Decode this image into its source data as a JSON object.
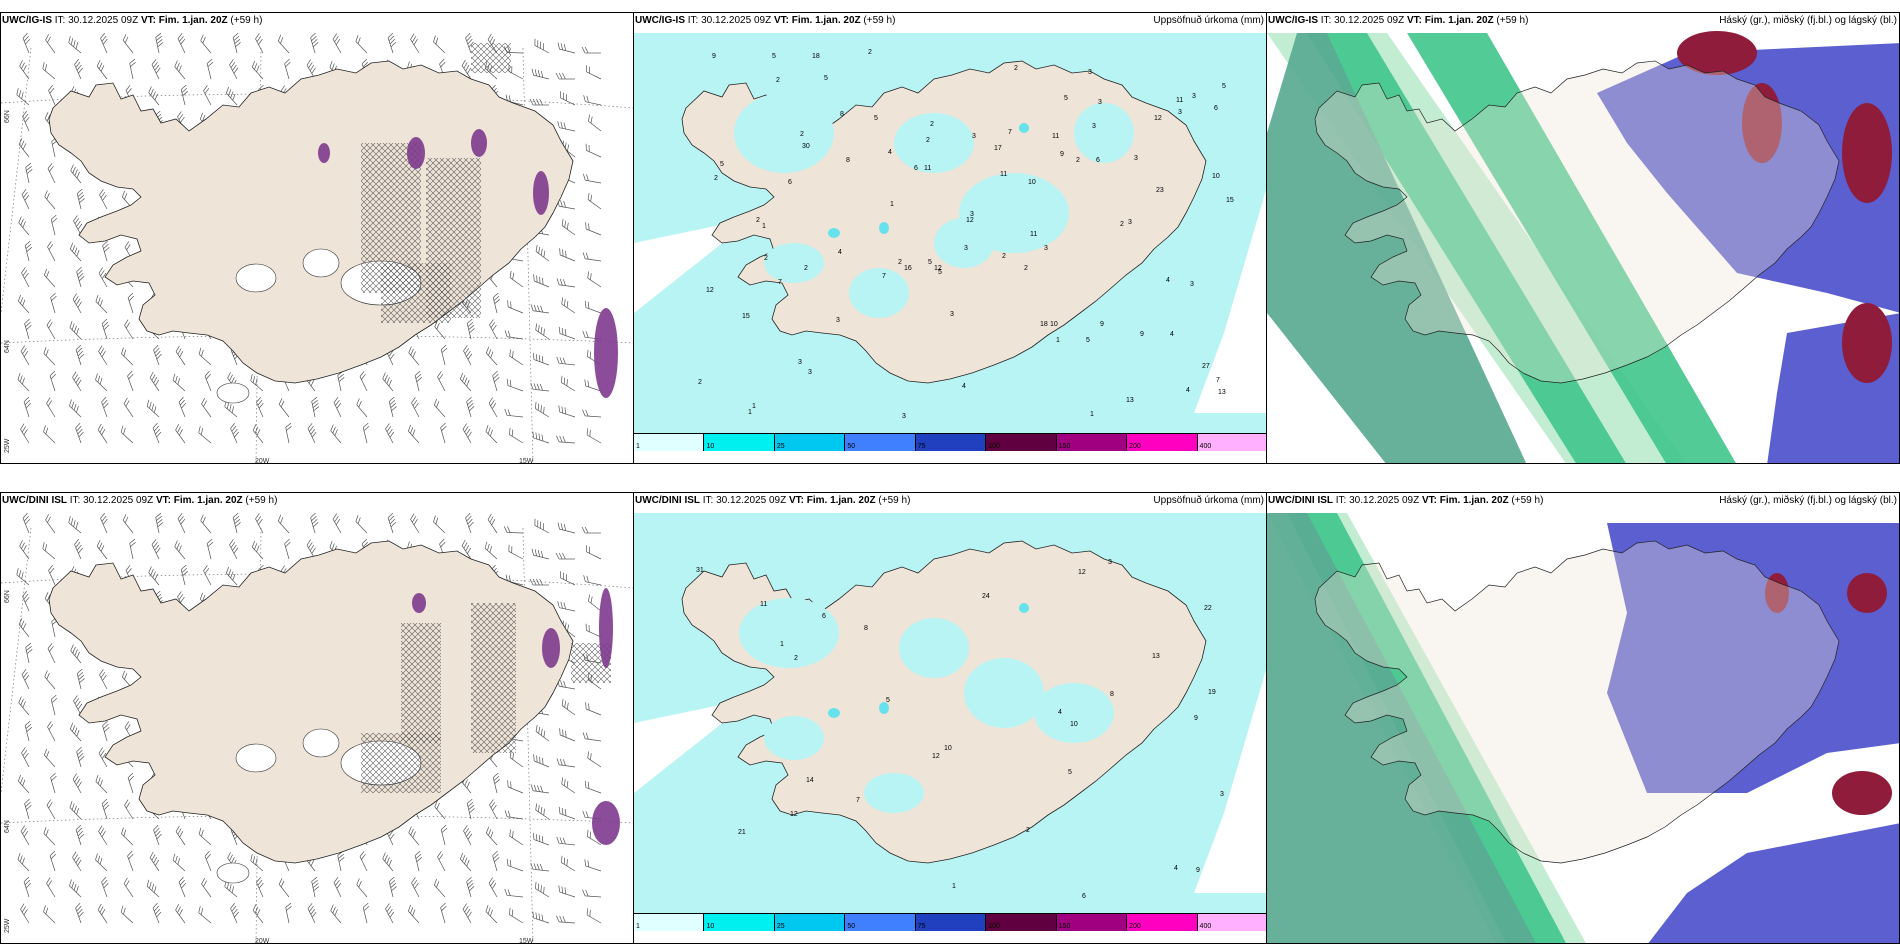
{
  "header": {
    "ig_model": "UWC/IG-IS",
    "dini_model": "UWC/DINI ISL",
    "it_text": " IT: 30.12.2025 09Z ",
    "vt_text": "VT: Fim. 1.jan. 20Z",
    "lead": " (+59 h)",
    "precip_title": "Uppsöfnuð úrkoma (mm)",
    "cloud_title": "Háský (gr.), miðský (fj.bl.) og lágský (bl.)"
  },
  "graticule": {
    "lat66": "66N",
    "lat64": "64N",
    "lon20": "20W",
    "lon15": "15W",
    "lon25": "25W"
  },
  "colorbar": {
    "ticks": [
      "1",
      "10",
      "25",
      "50",
      "75",
      "100",
      "150",
      "200",
      "400"
    ],
    "colors": [
      "#e0ffff",
      "#00f0f0",
      "#00c8f0",
      "#4080ff",
      "#2040c0",
      "#600040",
      "#a00080",
      "#ff00c0",
      "#ffb0ff"
    ]
  },
  "precip_labels_ig": [
    "1",
    "2",
    "3",
    "3",
    "3",
    "2",
    "3",
    "5",
    "9",
    "5",
    "3",
    "4",
    "6",
    "4",
    "5",
    "7",
    "10",
    "15",
    "11",
    "2",
    "3",
    "5",
    "2",
    "3",
    "16",
    "3",
    "18",
    "13",
    "8",
    "6",
    "3",
    "7",
    "2",
    "11",
    "11",
    "5",
    "9",
    "12",
    "2",
    "12",
    "7",
    "27",
    "23",
    "10",
    "5",
    "4",
    "3",
    "2",
    "9",
    "3",
    "6",
    "15",
    "11",
    "3",
    "3",
    "13",
    "11",
    "4",
    "5",
    "6",
    "2",
    "1",
    "2",
    "1",
    "2",
    "3",
    "5",
    "8",
    "18",
    "17",
    "4",
    "3",
    "7",
    "2",
    "2",
    "2",
    "3",
    "4",
    "2",
    "2",
    "10",
    "30",
    "1",
    "1",
    "2",
    "3",
    "1",
    "12",
    "9",
    "12",
    "5"
  ],
  "precip_labels_dini": [
    "1",
    "2",
    "3",
    "4",
    "5",
    "6",
    "7",
    "8",
    "10",
    "12",
    "13",
    "14",
    "11",
    "9",
    "19",
    "24",
    "31",
    "10",
    "22",
    "21",
    "12",
    "5",
    "1",
    "2",
    "3",
    "6",
    "9",
    "12",
    "8",
    "4"
  ],
  "colors": {
    "land": "#efe4d8",
    "cyan": "#b8f4f4",
    "cyan_dark": "#66e2ec",
    "purple": "#7e3a8e",
    "magenta": "#cc44cc",
    "low_cloud": "#5b5fcf",
    "mid_cloud": "#3c3ca8",
    "high_cloud_dark": "#5aaa92",
    "high_cloud_mid": "#43c78e",
    "high_cloud_light": "#bdeccf",
    "dark_red": "#8e1c3a"
  },
  "icons": [
    "wind-barb-icon",
    "hatch-pattern"
  ]
}
